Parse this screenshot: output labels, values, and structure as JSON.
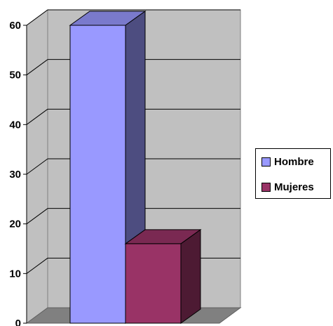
{
  "chart_data": {
    "type": "bar",
    "title": "",
    "xlabel": "",
    "ylabel": "",
    "ylim": [
      0,
      60
    ],
    "yticks": [
      0,
      10,
      20,
      30,
      40,
      50,
      60
    ],
    "grid": true,
    "three_d": true,
    "legend_position": "right",
    "series": [
      {
        "name": "Hombre",
        "value": 60,
        "color": "#9999ff",
        "side_color": "#4d4d80",
        "top_color": "#7a7acc"
      },
      {
        "name": "Mujeres",
        "value": 16,
        "color": "#993366",
        "side_color": "#4d1a33",
        "top_color": "#7a2952"
      }
    ]
  },
  "legend": {
    "items": [
      {
        "label": "Hombre",
        "color": "#9999ff"
      },
      {
        "label": "Mujeres",
        "color": "#993366"
      }
    ]
  }
}
